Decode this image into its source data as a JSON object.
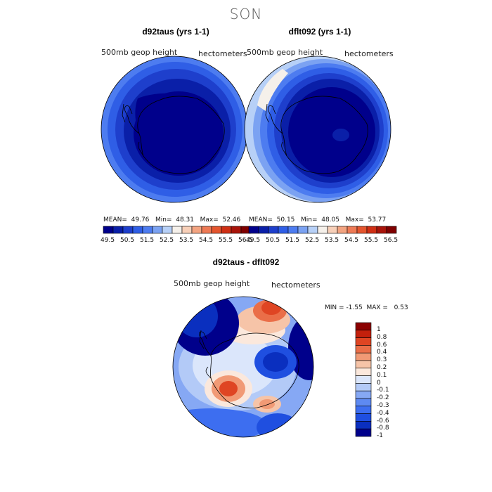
{
  "season": "SON",
  "colors": {
    "levels_abs": [
      "#00008b",
      "#0a1fa8",
      "#1e3fcc",
      "#2f5ee6",
      "#4d7cf0",
      "#7ba2f2",
      "#b7d0f7",
      "#f5f0ea",
      "#f7cfb8",
      "#f3a481",
      "#ee7a55",
      "#e4552e",
      "#cf2f14",
      "#a8140a",
      "#7f0000"
    ],
    "levels_diff": [
      "#00008b",
      "#0a2fbf",
      "#1f4fe0",
      "#3d6ef0",
      "#5e8af2",
      "#86a8f4",
      "#b3caf7",
      "#dbe6fb",
      "#fbe8dc",
      "#f6c4a8",
      "#f19a75",
      "#ea6e48",
      "#df4523",
      "#c3200c",
      "#8b0000"
    ]
  },
  "panels": [
    {
      "id": "d92taus",
      "title": "d92taus (yrs 1-1)",
      "field": "500mb geop height",
      "units": "hectometers",
      "stats": {
        "mean_label": "MEAN=",
        "mean": "49.76",
        "min_label": "Min=",
        "min": "48.31",
        "max_label": "Max=",
        "max": "52.46"
      }
    },
    {
      "id": "dflt092",
      "title": "dflt092 (yrs 1-1)",
      "field": "500mb geop height",
      "units": "hectometers",
      "stats": {
        "mean_label": "MEAN=",
        "mean": "50.15",
        "min_label": "Min=",
        "min": "48.05",
        "max_label": "Max=",
        "max": "53.77"
      }
    }
  ],
  "abs_colorbar_ticks": [
    "49.5",
    "50.5",
    "51.5",
    "52.5",
    "53.5",
    "54.5",
    "55.5",
    "56.5"
  ],
  "diff_panel": {
    "title": "d92taus - dflt092",
    "field": "500mb geop height",
    "units": "hectometers",
    "min_label": "MIN =",
    "min": "-1.55",
    "max_label": "MAX =",
    "max": "0.53",
    "colorbar_ticks": [
      "1",
      "0.8",
      "0.6",
      "0.4",
      "0.3",
      "0.2",
      "0.1",
      "0",
      "-0.1",
      "-0.2",
      "-0.3",
      "-0.4",
      "-0.6",
      "-0.8",
      "-1"
    ]
  },
  "chart_data": [
    {
      "type": "heatmap",
      "title": "d92taus (yrs 1-1)",
      "variable": "500mb geop height",
      "units": "hectometers",
      "projection": "south polar stereographic",
      "mean": 49.76,
      "min": 48.31,
      "max": 52.46,
      "colorbar_levels": [
        49.5,
        50.5,
        51.5,
        52.5,
        53.5,
        54.5,
        55.5,
        56.5
      ]
    },
    {
      "type": "heatmap",
      "title": "dflt092 (yrs 1-1)",
      "variable": "500mb geop height",
      "units": "hectometers",
      "projection": "south polar stereographic",
      "mean": 50.15,
      "min": 48.05,
      "max": 53.77,
      "colorbar_levels": [
        49.5,
        50.5,
        51.5,
        52.5,
        53.5,
        54.5,
        55.5,
        56.5
      ]
    },
    {
      "type": "heatmap",
      "title": "d92taus - dflt092",
      "variable": "500mb geop height",
      "units": "hectometers",
      "projection": "south polar stereographic",
      "min": -1.55,
      "max": 0.53,
      "colorbar_levels": [
        -1,
        -0.8,
        -0.6,
        -0.4,
        -0.3,
        -0.2,
        -0.1,
        0,
        0.1,
        0.2,
        0.3,
        0.4,
        0.6,
        0.8,
        1
      ]
    }
  ]
}
